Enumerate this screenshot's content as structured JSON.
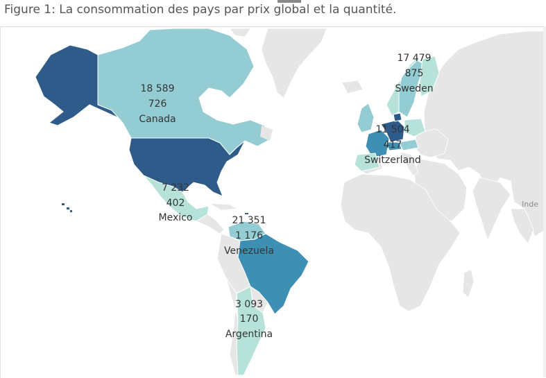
{
  "title": "Figure 1: La consommation des pays par prix global et la quantité.",
  "colors": {
    "ocean": "#ffffff",
    "land_gray": "#e6e6e6",
    "border": "#ffffff",
    "scale_darkest": "#2f5b8a",
    "scale_dark": "#3d8fb3",
    "scale_mid": "#93cdd3",
    "scale_light": "#b7e2d9"
  },
  "map_labels": {
    "india": "Inde"
  },
  "chart_data": {
    "type": "map",
    "title": "Figure 1: La consommation des pays par prix global et la quantité.",
    "countries": [
      {
        "name": "Canada",
        "value": "18 589",
        "quantity": "726"
      },
      {
        "name": "Mexico",
        "value": "7 232",
        "quantity": "402"
      },
      {
        "name": "Venezuela",
        "value": "21 351",
        "quantity": "1 176"
      },
      {
        "name": "Argentina",
        "value": "3 093",
        "quantity": "170"
      },
      {
        "name": "Sweden",
        "value": "17 479",
        "quantity": "875"
      },
      {
        "name": "Switzerland",
        "value": "11 504",
        "quantity": "417"
      }
    ]
  }
}
